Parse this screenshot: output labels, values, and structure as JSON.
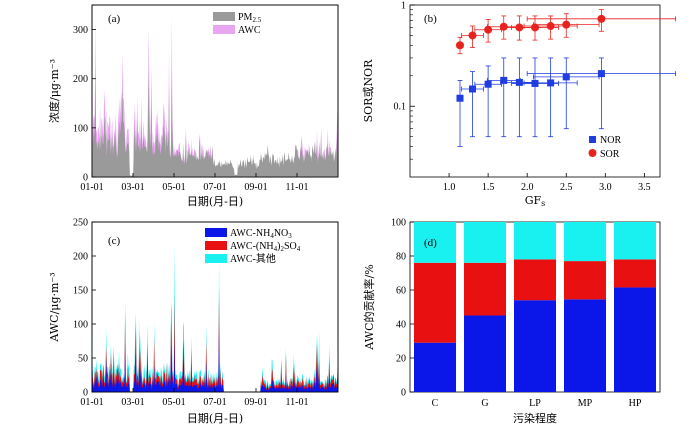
{
  "colors": {
    "pm25": "#9a9a9a",
    "awc": "#e8a6f0",
    "nor": "#1f3de0",
    "sor": "#e8231f",
    "nh4no3": "#0b17e8",
    "nh42so4": "#e81010",
    "other": "#19f0f0"
  },
  "chart_data": [
    {
      "type": "area",
      "panel_label": "(a)",
      "xlabel": "日期(月-日)",
      "ylabel": "浓度/μg·m⁻³",
      "ylim": [
        0,
        350
      ],
      "yticks": [
        0,
        100,
        200,
        300
      ],
      "xticks": [
        "01-01",
        "03-01",
        "05-01",
        "07-01",
        "09-01",
        "11-01"
      ],
      "series": [
        {
          "name": "PM2.5",
          "legend_main": "PM",
          "legend_sub": "2.5",
          "note": "daily time series, typical 20-140, peaks ~200-350 in Jan–Apr, low 10-60 in Jul–Sep"
        },
        {
          "name": "AWC",
          "legend_main": "AWC",
          "legend_sub": "",
          "note": "overlaid, peaks up to ~250-300 in Jan–Apr"
        }
      ]
    },
    {
      "type": "scatter",
      "panel_label": "(b)",
      "xlabel_main": "GF",
      "xlabel_sub": "s",
      "ylabel": "SOR或NOR",
      "yscale": "log",
      "ylim": [
        0.02,
        1
      ],
      "xlim": [
        0.5,
        3.7
      ],
      "xticks": [
        1.0,
        1.5,
        2.0,
        2.5,
        3.0,
        3.5
      ],
      "ytick_labels": [
        "0.1",
        "1"
      ],
      "legend": [
        "NOR",
        "SOR"
      ],
      "series": [
        {
          "name": "NOR",
          "points": [
            {
              "x": 1.14,
              "y": 0.12,
              "xerr": 0.04,
              "ylo": 0.04,
              "yhi": 0.18
            },
            {
              "x": 1.3,
              "y": 0.148,
              "xerr": 0.14,
              "ylo": 0.05,
              "yhi": 0.22
            },
            {
              "x": 1.5,
              "y": 0.165,
              "xerr": 0.17,
              "ylo": 0.05,
              "yhi": 0.25
            },
            {
              "x": 1.7,
              "y": 0.18,
              "xerr": 0.21,
              "ylo": 0.05,
              "yhi": 0.3
            },
            {
              "x": 1.9,
              "y": 0.172,
              "xerr": 0.24,
              "ylo": 0.05,
              "yhi": 0.3
            },
            {
              "x": 2.1,
              "y": 0.168,
              "xerr": 0.3,
              "ylo": 0.05,
              "yhi": 0.3
            },
            {
              "x": 2.3,
              "y": 0.17,
              "xerr": 0.34,
              "ylo": 0.05,
              "yhi": 0.3
            },
            {
              "x": 2.5,
              "y": 0.195,
              "xerr": 0.42,
              "ylo": 0.06,
              "yhi": 0.3
            },
            {
              "x": 2.95,
              "y": 0.21,
              "xerr": 0.95,
              "ylo": 0.06,
              "yhi": 0.3
            }
          ]
        },
        {
          "name": "SOR",
          "points": [
            {
              "x": 1.14,
              "y": 0.4,
              "xerr": 0.04,
              "ylo": 0.33,
              "yhi": 0.48
            },
            {
              "x": 1.3,
              "y": 0.5,
              "xerr": 0.14,
              "ylo": 0.38,
              "yhi": 0.62
            },
            {
              "x": 1.5,
              "y": 0.57,
              "xerr": 0.17,
              "ylo": 0.43,
              "yhi": 0.72
            },
            {
              "x": 1.7,
              "y": 0.61,
              "xerr": 0.21,
              "ylo": 0.46,
              "yhi": 0.78
            },
            {
              "x": 1.9,
              "y": 0.6,
              "xerr": 0.24,
              "ylo": 0.45,
              "yhi": 0.78
            },
            {
              "x": 2.1,
              "y": 0.6,
              "xerr": 0.3,
              "ylo": 0.45,
              "yhi": 0.78
            },
            {
              "x": 2.3,
              "y": 0.62,
              "xerr": 0.34,
              "ylo": 0.46,
              "yhi": 0.78
            },
            {
              "x": 2.5,
              "y": 0.64,
              "xerr": 0.42,
              "ylo": 0.48,
              "yhi": 0.82
            },
            {
              "x": 2.95,
              "y": 0.73,
              "xerr": 0.95,
              "ylo": 0.55,
              "yhi": 0.9
            }
          ]
        }
      ]
    },
    {
      "type": "area",
      "panel_label": "(c)",
      "xlabel": "日期(月-日)",
      "ylabel": "AWC/μg·m⁻³",
      "ylim": [
        0,
        250
      ],
      "yticks": [
        0,
        50,
        100,
        150,
        200,
        250
      ],
      "xticks": [
        "01-01",
        "03-01",
        "05-01",
        "07-01",
        "09-01",
        "11-01"
      ],
      "legend": [
        "AWC-NH4NO3",
        "AWC-(NH4)2SO4",
        "AWC-其他"
      ],
      "series": [
        {
          "name": "AWC-NH4NO3",
          "note": "stacked bottom layer, typical 5-40"
        },
        {
          "name": "AWC-(NH4)2SO4",
          "note": "stacked middle layer"
        },
        {
          "name": "AWC-其他",
          "note": "stacked top layer, peaks to ~220"
        }
      ]
    },
    {
      "type": "bar",
      "panel_label": "(d)",
      "xlabel": "污染程度",
      "ylabel": "AWC的贡献率/%",
      "ylim": [
        0,
        100
      ],
      "yticks": [
        0,
        20,
        40,
        60,
        80,
        100
      ],
      "categories": [
        "C",
        "G",
        "LP",
        "MP",
        "HP"
      ],
      "series": [
        {
          "name": "AWC-NH4NO3",
          "values": [
            29,
            45,
            54,
            54.5,
            61.5
          ]
        },
        {
          "name": "AWC-(NH4)2SO4",
          "values": [
            47,
            31,
            24,
            22.5,
            16.5
          ]
        },
        {
          "name": "AWC-其他",
          "values": [
            24,
            24,
            22,
            23,
            22
          ]
        }
      ]
    }
  ]
}
